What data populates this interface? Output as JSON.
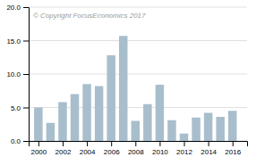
{
  "chart_data": {
    "type": "bar",
    "annotations": [
      "© Copyright FocusEconomics  2017"
    ],
    "x": [
      2000,
      2001,
      2002,
      2003,
      2004,
      2005,
      2006,
      2007,
      2008,
      2009,
      2010,
      2011,
      2012,
      2013,
      2014,
      2015,
      2016
    ],
    "values": [
      5.0,
      2.7,
      5.8,
      7.0,
      8.5,
      8.2,
      12.8,
      15.7,
      3.0,
      5.5,
      8.4,
      3.1,
      1.1,
      3.5,
      4.2,
      3.6,
      4.5
    ],
    "color": "#a8becc",
    "xlim": [
      1999.2,
      2017.2
    ],
    "xticks": [
      2000,
      2002,
      2004,
      2006,
      2008,
      2010,
      2012,
      2014,
      2016
    ],
    "ylim": [
      0.0,
      20.0
    ],
    "yticks": [
      {
        "value": 0.0,
        "label": "0.0"
      },
      {
        "value": 5.0,
        "label": "5.0"
      },
      {
        "value": 10.0,
        "label": "10.0"
      },
      {
        "value": 15.0,
        "label": "15.0"
      },
      {
        "value": 20.0,
        "label": "20.0"
      }
    ],
    "grid": true
  }
}
